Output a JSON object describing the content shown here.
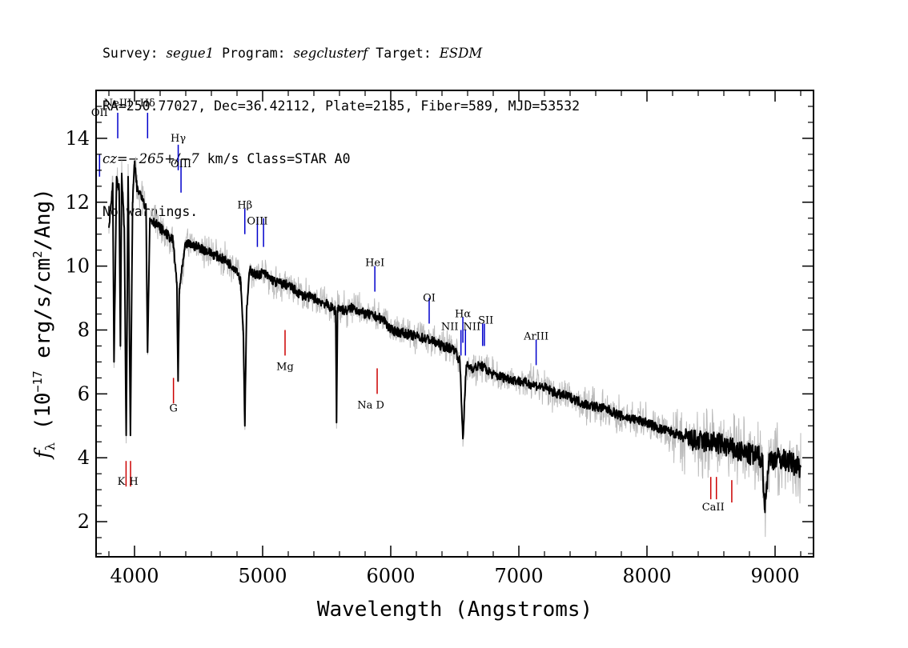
{
  "header": {
    "survey_label": "Survey:",
    "survey": "segue1",
    "program_label": "Program:",
    "program": "segclusterf",
    "target_label": "Target:",
    "target": "ESDM",
    "line2": "RA=250.77027, Dec=36.42112, Plate=2185, Fiber=589, MJD=53532",
    "cz_label": "cz=",
    "cz_value": "−265+/−7",
    "cz_rest": " km/s Class=STAR A0",
    "line4": "No warnings."
  },
  "chart_data": {
    "type": "line",
    "xlabel": "Wavelength (Angstroms)",
    "ylabel": "f_λ (10^-17 erg/s/cm^2/Ang)",
    "xlim": [
      3700,
      9300
    ],
    "ylim": [
      0.9,
      15.5
    ],
    "xticks": [
      4000,
      5000,
      6000,
      7000,
      8000,
      9000
    ],
    "yticks": [
      2,
      4,
      6,
      8,
      10,
      12,
      14
    ],
    "colors": {
      "flux": "#000000",
      "error_band": "#bbbbbb",
      "emission": "#0000cc",
      "absorption": "#cc0000"
    },
    "series": [
      {
        "style": "smoothed flux",
        "x": [
          3800,
          3830,
          3840,
          3860,
          3880,
          3890,
          3900,
          3920,
          3935,
          3950,
          3968,
          3985,
          4000,
          4020,
          4060,
          4090,
          4102,
          4120,
          4200,
          4300,
          4330,
          4340,
          4350,
          4400,
          4500,
          4600,
          4700,
          4800,
          4830,
          4850,
          4861,
          4875,
          4900,
          4950,
          5000,
          5100,
          5200,
          5300,
          5400,
          5500,
          5570,
          5577,
          5585,
          5650,
          5700,
          5800,
          5900,
          5950,
          6000,
          6100,
          6200,
          6300,
          6400,
          6500,
          6540,
          6563,
          6590,
          6650,
          6700,
          6800,
          6900,
          7000,
          7100,
          7200,
          7300,
          7400,
          7500,
          7600,
          7700,
          7800,
          7900,
          8000,
          8100,
          8200,
          8300,
          8400,
          8500,
          8600,
          8700,
          8800,
          8900,
          8920,
          8950,
          9000,
          9100,
          9200
        ],
        "y": [
          11.2,
          12.6,
          7.0,
          12.8,
          12.4,
          7.5,
          12.9,
          11.2,
          4.7,
          12.8,
          4.7,
          12.0,
          13.2,
          12.4,
          12.2,
          11.8,
          7.3,
          11.5,
          11.2,
          10.8,
          9.5,
          6.4,
          9.3,
          10.7,
          10.6,
          10.4,
          10.2,
          9.9,
          9.5,
          7.8,
          5.0,
          8.6,
          9.9,
          9.7,
          9.8,
          9.5,
          9.4,
          9.1,
          9.0,
          8.8,
          8.6,
          5.1,
          8.7,
          8.6,
          8.7,
          8.5,
          8.4,
          8.3,
          8.0,
          7.9,
          7.8,
          7.7,
          7.5,
          7.4,
          7.0,
          4.6,
          6.9,
          6.8,
          6.9,
          6.6,
          6.5,
          6.4,
          6.3,
          6.2,
          6.0,
          5.9,
          5.7,
          5.6,
          5.5,
          5.3,
          5.2,
          5.1,
          4.9,
          4.8,
          4.6,
          4.5,
          4.5,
          4.4,
          4.2,
          4.1,
          4.0,
          2.4,
          3.9,
          4.0,
          3.9,
          3.7
        ]
      }
    ],
    "line_labels": {
      "emission": [
        {
          "label": "OII",
          "x": 3727
        },
        {
          "label": "NeIII",
          "x": 3869
        },
        {
          "label": "Hδ",
          "x": 4102
        },
        {
          "label": "Hγ",
          "x": 4341
        },
        {
          "label": "OIII",
          "x": 4363
        },
        {
          "label": "Hβ",
          "x": 4861
        },
        {
          "label": "OIII",
          "x": 4959
        },
        {
          "label": "OIII",
          "x": 5007
        },
        {
          "label": "HeI",
          "x": 5876
        },
        {
          "label": "OI",
          "x": 6300
        },
        {
          "label": "NII",
          "x": 6548
        },
        {
          "label": "Hα",
          "x": 6563
        },
        {
          "label": "NII",
          "x": 6583
        },
        {
          "label": "SII",
          "x": 6717
        },
        {
          "label": "SII",
          "x": 6731
        },
        {
          "label": "ArIII",
          "x": 7135
        }
      ],
      "absorption": [
        {
          "label": "K",
          "x": 3934
        },
        {
          "label": "H",
          "x": 3969
        },
        {
          "label": "G",
          "x": 4304
        },
        {
          "label": "Mg",
          "x": 5175
        },
        {
          "label": "Na D",
          "x": 5894
        },
        {
          "label": "CaII",
          "x": 8498
        },
        {
          "label": "CaII",
          "x": 8542
        },
        {
          "label": "CaII",
          "x": 8662
        }
      ]
    }
  }
}
